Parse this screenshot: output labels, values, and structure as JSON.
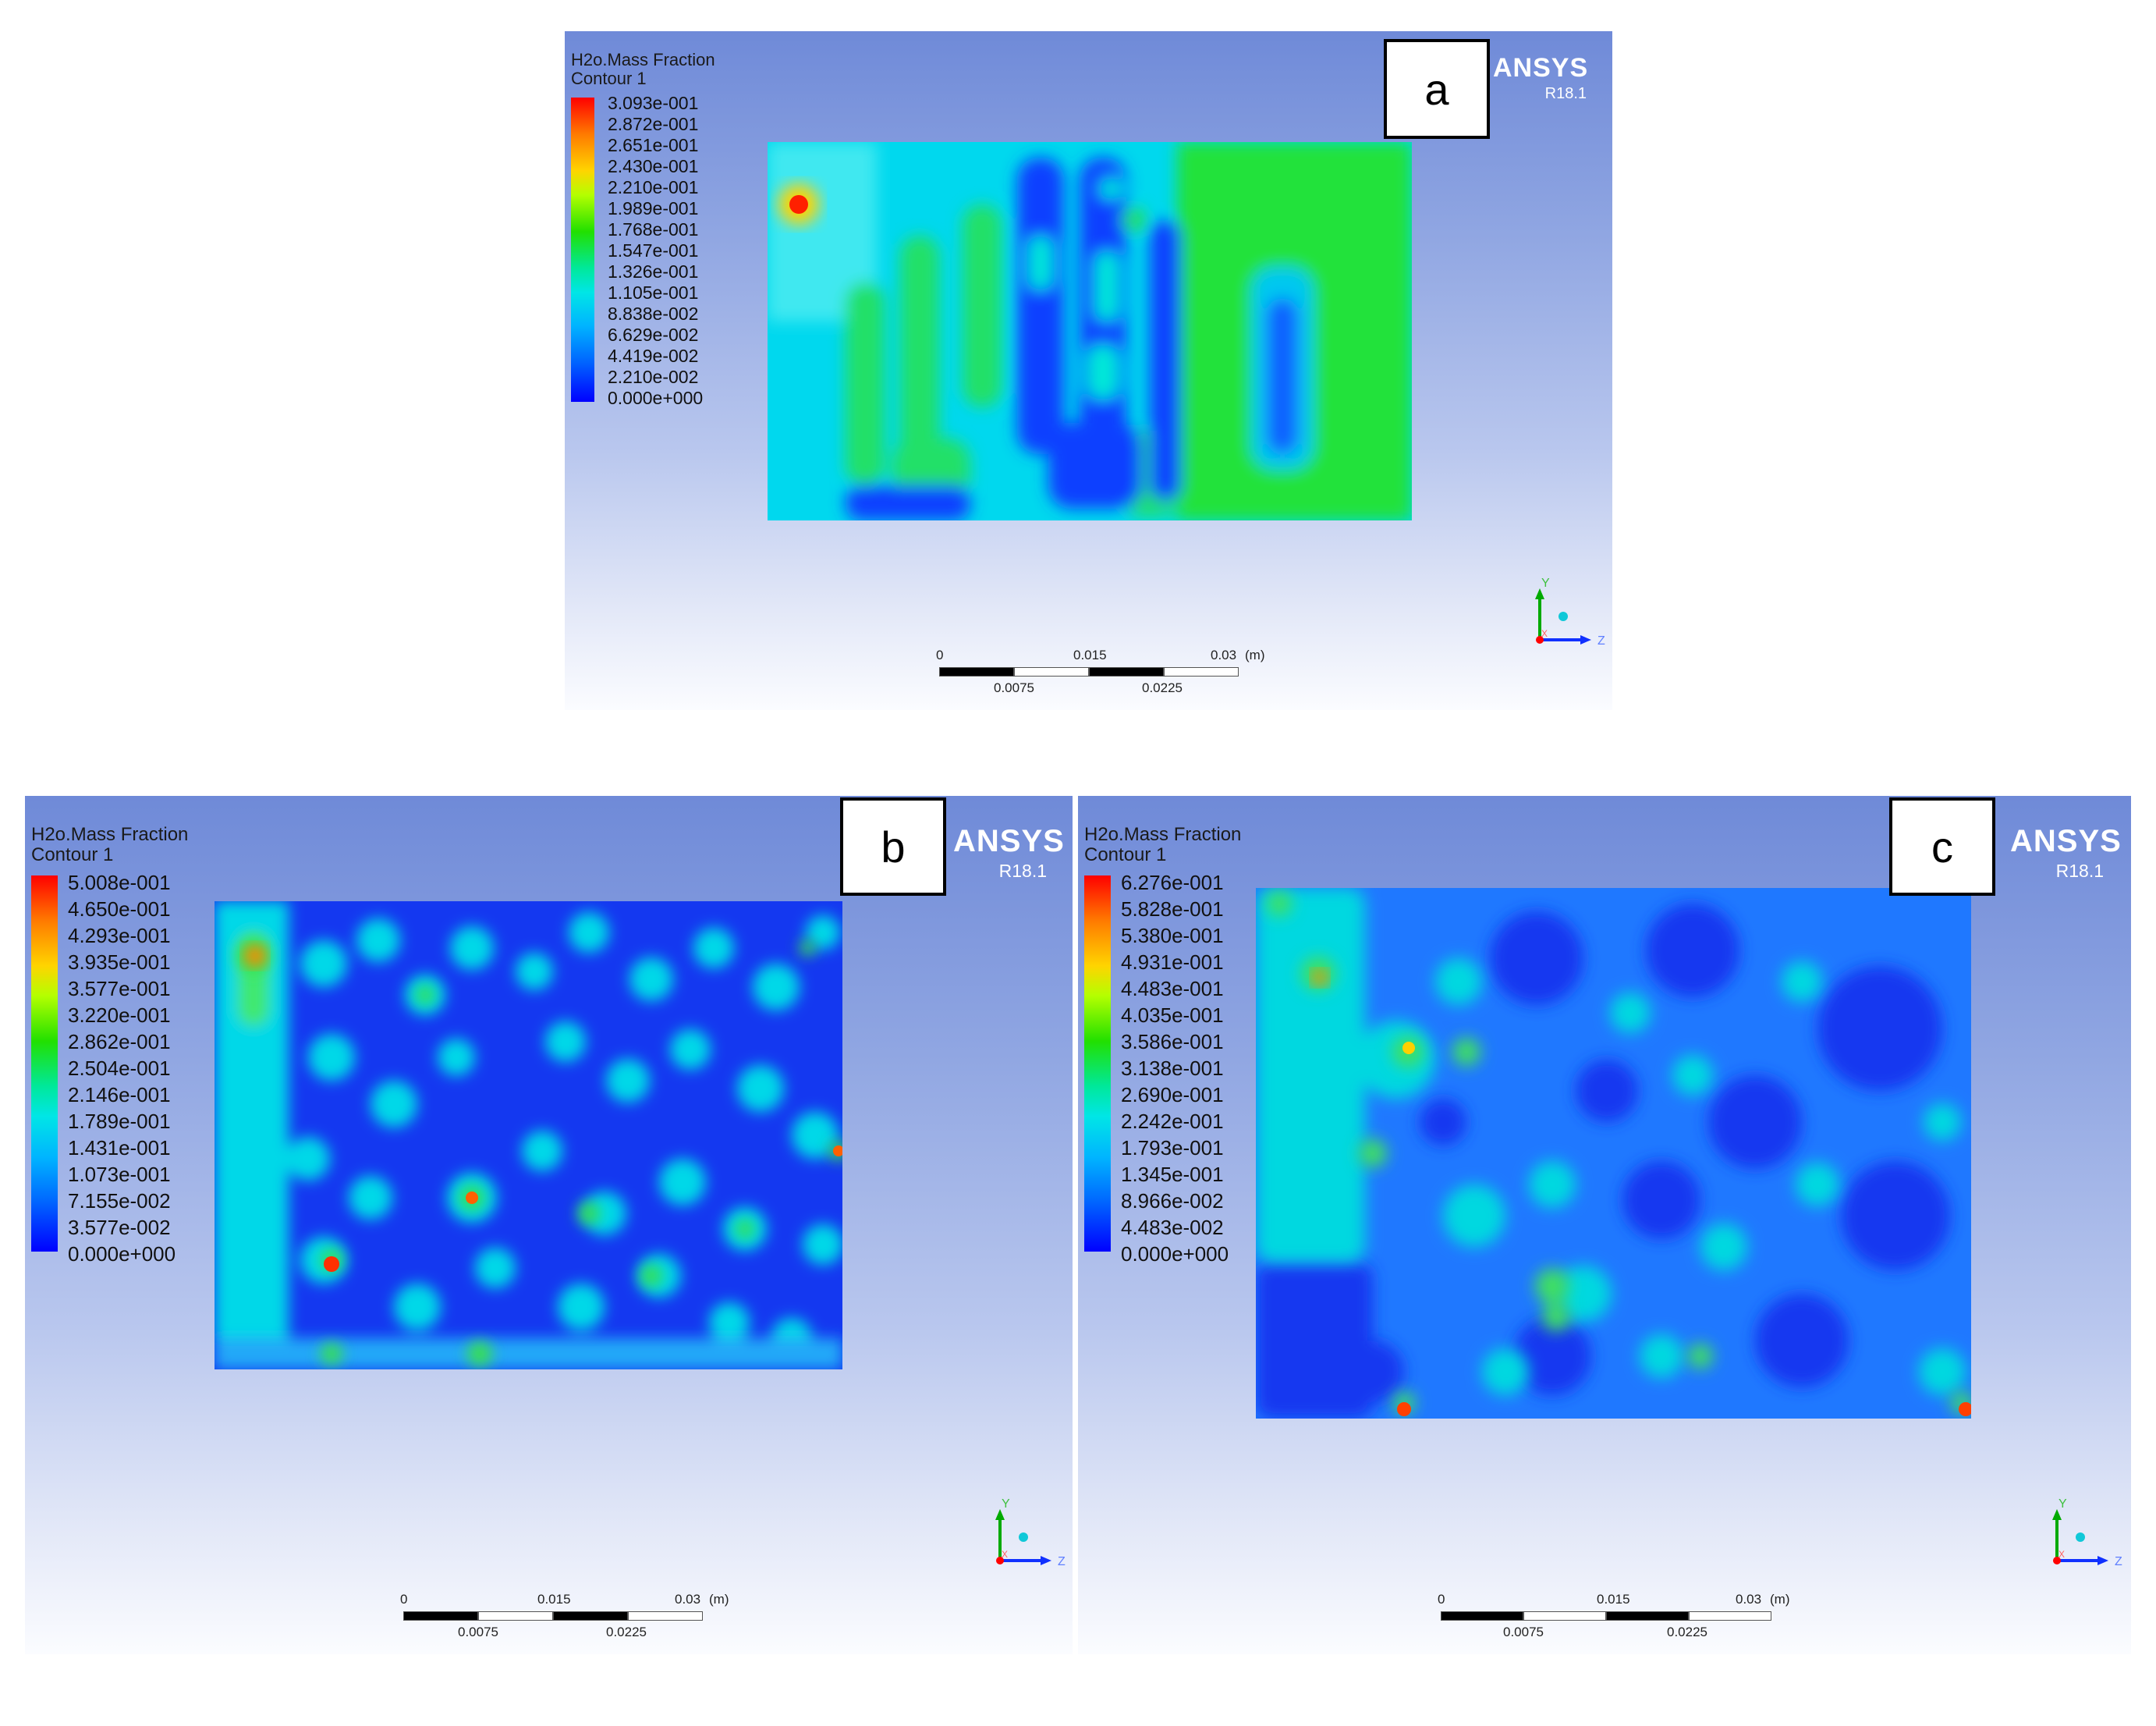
{
  "panels": {
    "a": {
      "label": "a",
      "quantity": "H2o.Mass Fraction",
      "contour": "Contour 1",
      "brand": "ANSYS",
      "version": "R18.1",
      "legend_values": [
        "3.093e-001",
        "2.872e-001",
        "2.651e-001",
        "2.430e-001",
        "2.210e-001",
        "1.989e-001",
        "1.768e-001",
        "1.547e-001",
        "1.326e-001",
        "1.105e-001",
        "8.838e-002",
        "6.629e-002",
        "4.419e-002",
        "2.210e-002",
        "0.000e+000"
      ],
      "scale_bar": {
        "top_ticks": [
          "0",
          "0.015",
          "0.03"
        ],
        "bottom_ticks": [
          "0.0075",
          "0.0225"
        ],
        "unit": "(m)"
      },
      "axes": {
        "y": "Y",
        "z": "Z",
        "x": "X"
      }
    },
    "b": {
      "label": "b",
      "quantity": "H2o.Mass Fraction",
      "contour": "Contour 1",
      "brand": "ANSYS",
      "version": "R18.1",
      "legend_values": [
        "5.008e-001",
        "4.650e-001",
        "4.293e-001",
        "3.935e-001",
        "3.577e-001",
        "3.220e-001",
        "2.862e-001",
        "2.504e-001",
        "2.146e-001",
        "1.789e-001",
        "1.431e-001",
        "1.073e-001",
        "7.155e-002",
        "3.577e-002",
        "0.000e+000"
      ],
      "scale_bar": {
        "top_ticks": [
          "0",
          "0.015",
          "0.03"
        ],
        "bottom_ticks": [
          "0.0075",
          "0.0225"
        ],
        "unit": "(m)"
      },
      "axes": {
        "y": "Y",
        "z": "Z",
        "x": "X"
      }
    },
    "c": {
      "label": "c",
      "quantity": "H2o.Mass Fraction",
      "contour": "Contour 1",
      "brand": "ANSYS",
      "version": "R18.1",
      "legend_values": [
        "6.276e-001",
        "5.828e-001",
        "5.380e-001",
        "4.931e-001",
        "4.483e-001",
        "4.035e-001",
        "3.586e-001",
        "3.138e-001",
        "2.690e-001",
        "2.242e-001",
        "1.793e-001",
        "1.345e-001",
        "8.966e-002",
        "4.483e-002",
        "0.000e+000"
      ],
      "scale_bar": {
        "top_ticks": [
          "0",
          "0.015",
          "0.03"
        ],
        "bottom_ticks": [
          "0.0075",
          "0.0225"
        ],
        "unit": "(m)"
      },
      "axes": {
        "y": "Y",
        "z": "Z",
        "x": "X"
      }
    }
  },
  "colors": {
    "legend_max": "#ff0000",
    "legend_mid": "#22e000",
    "legend_min": "#0000ff",
    "background_top": "#6f8ad8",
    "background_bottom": "#fbfcff",
    "brand_text": "#ffffff",
    "axis_y": "#00aa00",
    "axis_z": "#1030ff",
    "axis_x": "#ff0000"
  }
}
